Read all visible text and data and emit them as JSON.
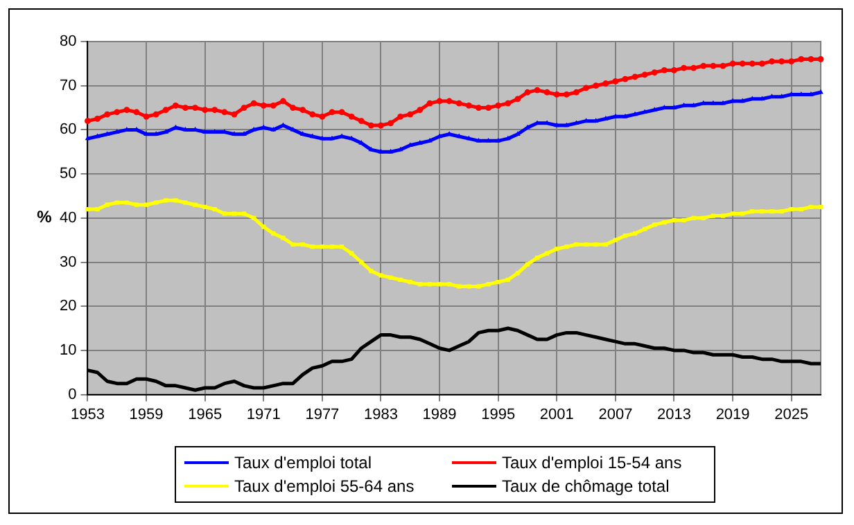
{
  "chart_data": {
    "type": "line",
    "ylabel": "%",
    "categories": [
      "1953",
      null,
      null,
      null,
      null,
      null,
      "1959",
      null,
      null,
      null,
      null,
      null,
      "1965",
      null,
      null,
      null,
      null,
      null,
      "1971",
      null,
      null,
      null,
      null,
      null,
      "1977",
      null,
      null,
      null,
      null,
      null,
      "1983",
      null,
      null,
      null,
      null,
      null,
      "1989",
      null,
      null,
      null,
      null,
      null,
      "1995",
      null,
      null,
      null,
      null,
      null,
      "2001",
      null,
      null,
      null,
      null,
      null,
      "2007",
      null,
      null,
      null,
      null,
      null,
      "2013",
      null,
      null,
      null,
      null,
      null,
      "2019",
      null,
      null,
      null,
      null,
      null,
      "2025",
      null,
      null,
      null
    ],
    "series": [
      {
        "name": "Taux d'emploi total",
        "color": "#0000ff",
        "marker": "triangle",
        "values": [
          58,
          58.5,
          59,
          59.5,
          60,
          60,
          59,
          59,
          59.5,
          60.5,
          60,
          60,
          59.5,
          59.5,
          59.5,
          59,
          59,
          60,
          60.5,
          60,
          61,
          60,
          59,
          58.5,
          58,
          58,
          58.5,
          58,
          57,
          55.5,
          55,
          55,
          55.5,
          56.5,
          57,
          57.5,
          58.5,
          59,
          58.5,
          58,
          57.5,
          57.5,
          57.5,
          58,
          59,
          60.5,
          61.5,
          61.5,
          61,
          61,
          61.5,
          62,
          62,
          62.5,
          63,
          63,
          63.5,
          64,
          64.5,
          65,
          65,
          65.5,
          65.5,
          66,
          66,
          66,
          66.5,
          66.5,
          67,
          67,
          67.5,
          67.5,
          68,
          68,
          68,
          68.5
        ]
      },
      {
        "name": "Taux d'emploi 15-54 ans",
        "color": "#ff0000",
        "marker": "circle",
        "values": [
          62,
          62.5,
          63.5,
          64,
          64.5,
          64,
          63,
          63.5,
          64.5,
          65.5,
          65,
          65,
          64.5,
          64.5,
          64,
          63.5,
          65,
          66,
          65.5,
          65.5,
          66.5,
          65,
          64.5,
          63.5,
          63,
          64,
          64,
          63,
          62,
          61,
          61,
          61.5,
          63,
          63.5,
          64.5,
          66,
          66.5,
          66.5,
          66,
          65.5,
          65,
          65,
          65.5,
          66,
          67,
          68.5,
          69,
          68.5,
          68,
          68,
          68.5,
          69.5,
          70,
          70.5,
          71,
          71.5,
          72,
          72.5,
          73,
          73.5,
          73.5,
          74,
          74,
          74.5,
          74.5,
          74.5,
          75,
          75,
          75,
          75,
          75.5,
          75.5,
          75.5,
          76,
          76,
          76
        ]
      },
      {
        "name": "Taux d'emploi 55-64 ans",
        "color": "#ffff00",
        "marker": "square",
        "values": [
          42,
          42,
          43,
          43.5,
          43.5,
          43,
          43,
          43.5,
          44,
          44,
          43.5,
          43,
          42.5,
          42,
          41,
          41,
          41,
          40,
          38,
          36.5,
          35.5,
          34,
          34,
          33.5,
          33.5,
          33.5,
          33.5,
          32,
          30,
          28,
          27,
          26.5,
          26,
          25.5,
          25,
          25,
          25,
          25,
          24.5,
          24.5,
          24.5,
          25,
          25.5,
          26,
          27.5,
          29.5,
          31,
          32,
          33,
          33.5,
          34,
          34,
          34,
          34,
          35,
          36,
          36.5,
          37.5,
          38.5,
          39,
          39.5,
          39.5,
          40,
          40,
          40.5,
          40.5,
          41,
          41,
          41.5,
          41.5,
          41.5,
          41.5,
          42,
          42,
          42.5,
          42.5
        ]
      },
      {
        "name": "Taux de chômage total",
        "color": "#000000",
        "marker": "none",
        "values": [
          5.5,
          5,
          3,
          2.5,
          2.5,
          3.5,
          3.5,
          3,
          2,
          2,
          1.5,
          1,
          1.5,
          1.5,
          2.5,
          3,
          2,
          1.5,
          1.5,
          2,
          2.5,
          2.5,
          4.5,
          6,
          6.5,
          7.5,
          7.5,
          8,
          10.5,
          12,
          13.5,
          13.5,
          13,
          13,
          12.5,
          11.5,
          10.5,
          10,
          11,
          12,
          14,
          14.5,
          14.5,
          15,
          14.5,
          13.5,
          12.5,
          12.5,
          13.5,
          14,
          14,
          13.5,
          13,
          12.5,
          12,
          11.5,
          11.5,
          11,
          10.5,
          10.5,
          10,
          10,
          9.5,
          9.5,
          9,
          9,
          9,
          8.5,
          8.5,
          8,
          8,
          7.5,
          7.5,
          7.5,
          7,
          7
        ]
      }
    ],
    "ylim": [
      0,
      80
    ],
    "yticks": [
      0,
      10,
      20,
      30,
      40,
      50,
      60,
      70,
      80
    ],
    "grid": true,
    "legend": "bottom",
    "line_style": "solid"
  }
}
